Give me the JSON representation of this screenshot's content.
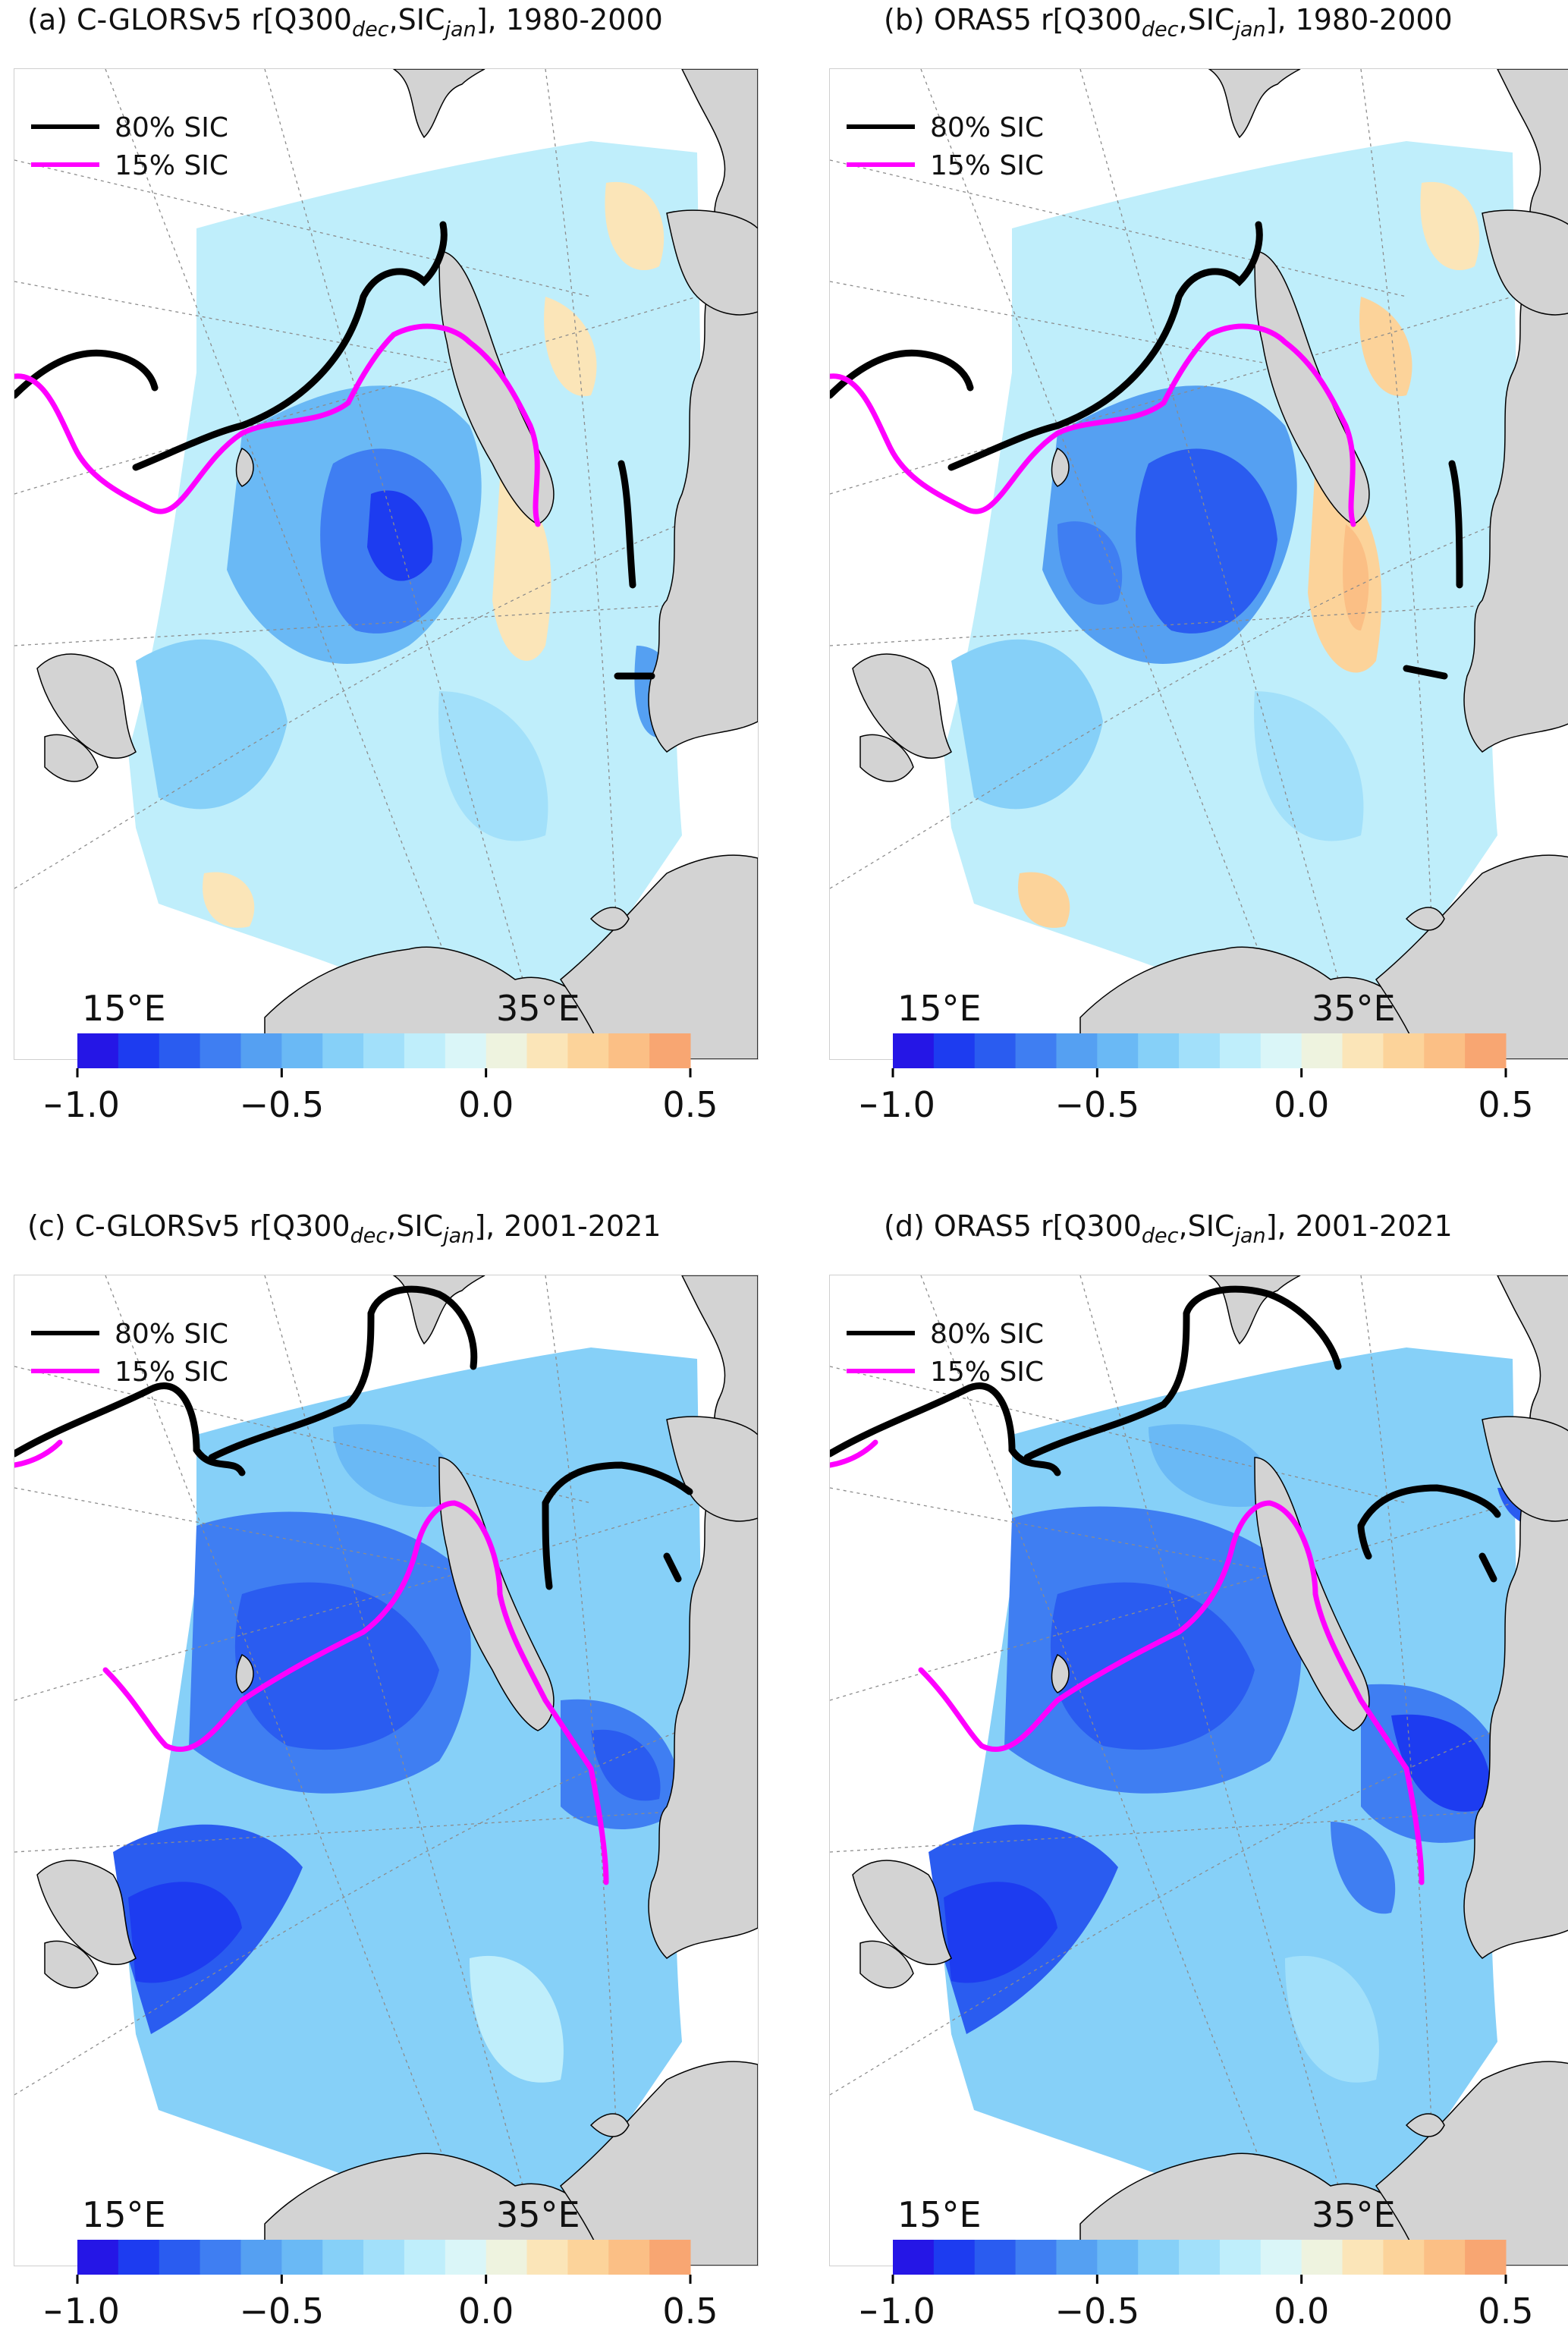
{
  "panels": [
    {
      "letter": "(a)",
      "model": "C-GLORSv5",
      "period": "1980-2000",
      "variant": "a"
    },
    {
      "letter": "(b)",
      "model": "ORAS5",
      "period": "1980-2000",
      "variant": "b"
    },
    {
      "letter": "(c)",
      "model": "C-GLORSv5",
      "period": "2001-2021",
      "variant": "c"
    },
    {
      "letter": "(d)",
      "model": "ORAS5",
      "period": "2001-2021",
      "variant": "d"
    }
  ],
  "title_parts": {
    "prefix": "r[Q300",
    "sub1": "dec",
    "mid": ",SIC",
    "sub2": "jan",
    "suffix": "],"
  },
  "legend": {
    "line80": "80% SIC",
    "line15": "15% SIC",
    "color80": "#000000",
    "color15": "#ff00ff"
  },
  "longitude_labels": {
    "west": "15°E",
    "east": "35°E"
  },
  "colorbar": {
    "range": [
      -1.0,
      0.5
    ],
    "tick_labels": [
      "−1.0",
      "−0.5",
      "0.0",
      "0.5"
    ],
    "colors": [
      "#2516e6",
      "#1d3cf0",
      "#2a5cf0",
      "#3f7ef2",
      "#55a0f2",
      "#6ab9f5",
      "#86d0f8",
      "#a2e0fa",
      "#bfeefb",
      "#daf6f8",
      "#eef3df",
      "#fbe5b8",
      "#fcd39a",
      "#fbbf85",
      "#f8a672"
    ]
  },
  "map_colors": {
    "land": "#d3d3d3",
    "coast": "#000000"
  }
}
